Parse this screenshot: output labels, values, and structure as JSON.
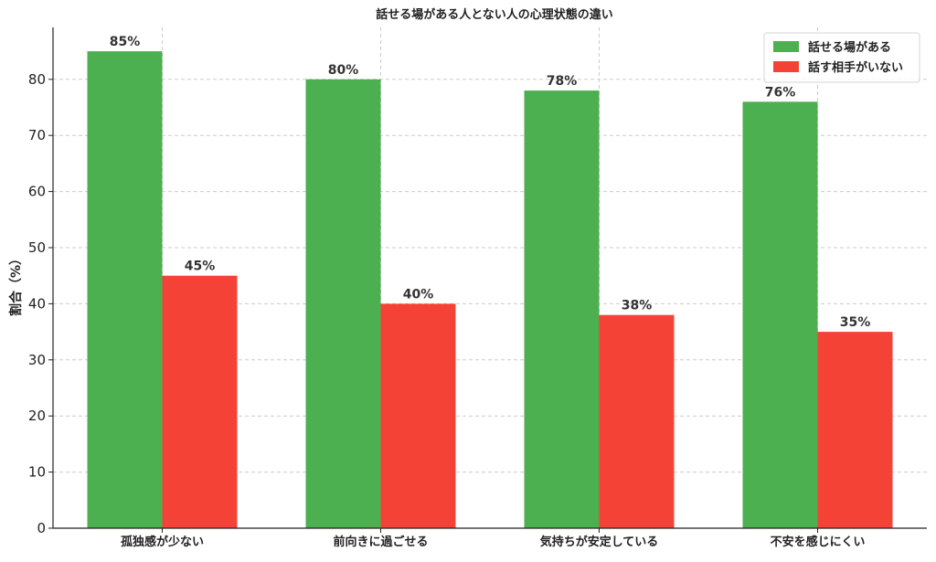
{
  "chart_data": {
    "type": "bar",
    "title": "話せる場がある人とない人の心理状態の違い",
    "xlabel": "",
    "ylabel": "割合（%）",
    "categories": [
      "孤独感が少ない",
      "前向きに過ごせる",
      "気持ちが安定している",
      "不安を感じにくい"
    ],
    "series": [
      {
        "name": "話せる場がある",
        "values": [
          85,
          80,
          78,
          76
        ],
        "labels": [
          "85%",
          "80%",
          "78%",
          "76%"
        ],
        "color": "#4caf50"
      },
      {
        "name": "話す相手がいない",
        "values": [
          45,
          40,
          38,
          35
        ],
        "labels": [
          "45%",
          "40%",
          "38%",
          "35%"
        ],
        "color": "#f44336"
      }
    ],
    "ylim": [
      0,
      89.25
    ],
    "yticks": [
      0,
      10,
      20,
      30,
      40,
      50,
      60,
      70,
      80
    ],
    "grid": true,
    "legend_position": "top-right"
  }
}
